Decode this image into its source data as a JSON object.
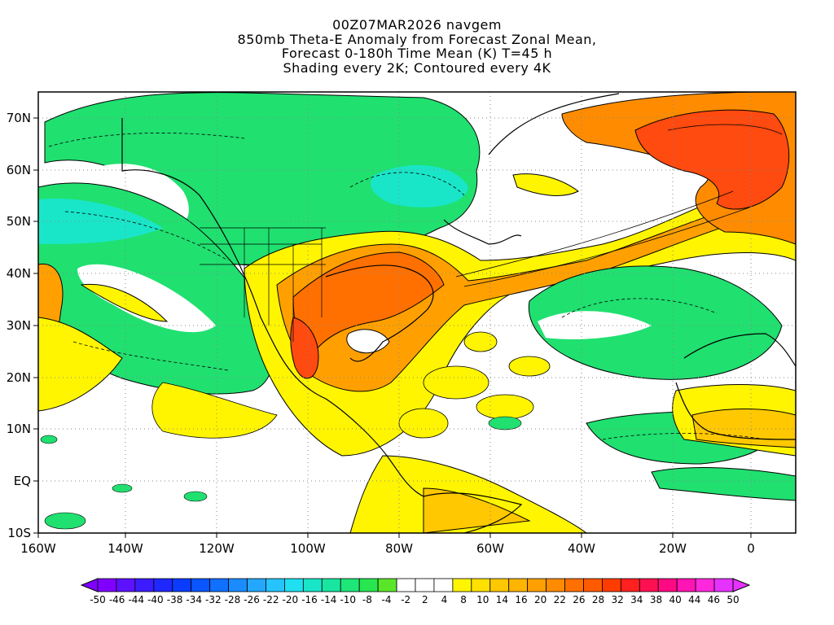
{
  "title": {
    "lines": [
      "00Z07MAR2026 navgem",
      "850mb Theta-E Anomaly from Forecast Zonal Mean,",
      "Forecast 0-180h Time Mean (K) T=45 h",
      "Shading every 2K; Contoured every 4K"
    ]
  },
  "axes": {
    "lat_labels": [
      "70N",
      "60N",
      "50N",
      "40N",
      "30N",
      "20N",
      "10N",
      "EQ",
      "10S"
    ],
    "lon_labels": [
      "160W",
      "140W",
      "120W",
      "100W",
      "80W",
      "60W",
      "40W",
      "20W",
      "0"
    ]
  },
  "colorbar": {
    "labels": [
      "-50",
      "-46",
      "-44",
      "-40",
      "-38",
      "-34",
      "-32",
      "-28",
      "-26",
      "-22",
      "-20",
      "-16",
      "-14",
      "-10",
      "-8",
      "-4",
      "-2",
      "2",
      "4",
      "8",
      "10",
      "14",
      "16",
      "20",
      "22",
      "26",
      "28",
      "32",
      "34",
      "38",
      "40",
      "44",
      "46",
      "50"
    ],
    "colors": [
      "#7f00ff",
      "#5d12ff",
      "#3c1cff",
      "#1e28ff",
      "#0a3cff",
      "#0a55ff",
      "#1070ff",
      "#1a8cff",
      "#24a8ff",
      "#26c4ff",
      "#1ee0f0",
      "#19e6c8",
      "#18e6a0",
      "#1ee678",
      "#28e650",
      "#5ae628",
      "#ffffff",
      "#ffffff",
      "#ffffff",
      "#fff500",
      "#ffe000",
      "#ffc800",
      "#ffb400",
      "#ffa000",
      "#ff8c00",
      "#ff7000",
      "#ff5a00",
      "#ff3c00",
      "#ff2020",
      "#ff1050",
      "#ff0a82",
      "#ff14b4",
      "#ff28dc",
      "#e632ff"
    ]
  },
  "colors": {
    "green": "#20e070",
    "green_light": "#5ae628",
    "teal": "#19e6c8",
    "cyan": "#1ee0f0",
    "yellow": "#fff500",
    "gold": "#ffc800",
    "orange": "#ffa000",
    "dark_orange": "#ff7000",
    "red_orange": "#ff4a10"
  }
}
